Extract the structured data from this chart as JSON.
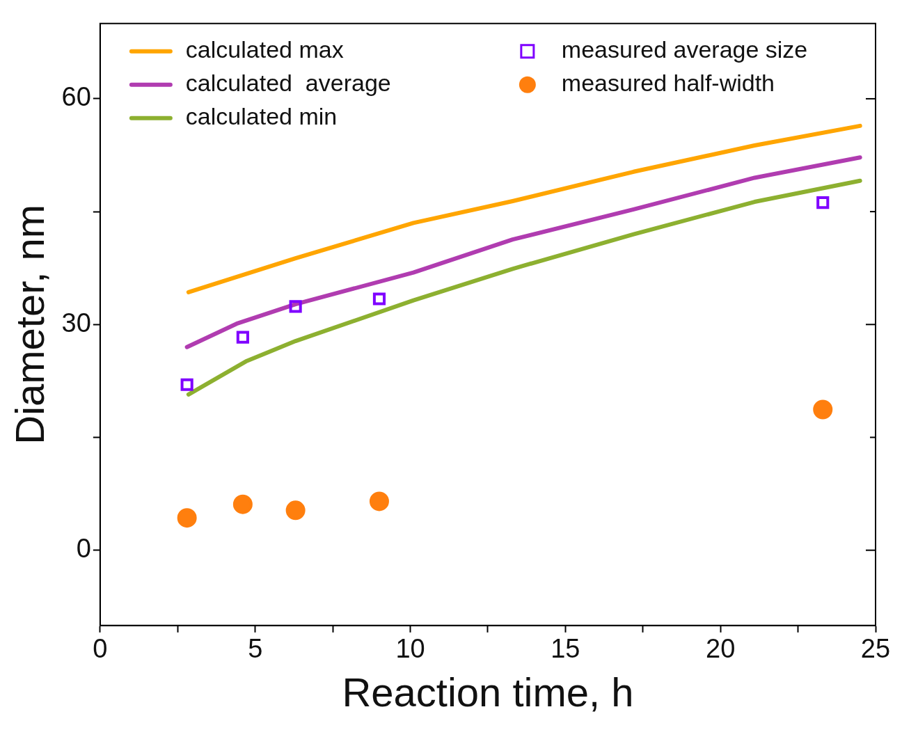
{
  "chart_data": {
    "type": "line",
    "xlabel": "Reaction time, h",
    "ylabel": "Diameter, nm",
    "xlim": [
      0,
      25
    ],
    "ylim": [
      -10,
      70
    ],
    "xticks": [
      0,
      {
        "value": 2.5,
        "label": null
      },
      5,
      {
        "value": 7.5,
        "label": null
      },
      10,
      {
        "value": 12.5,
        "label": null
      },
      15,
      {
        "value": 17.5,
        "label": null
      },
      20,
      {
        "value": 22.5,
        "label": null
      },
      25
    ],
    "yticks": [
      0,
      {
        "value": 15,
        "label": null
      },
      30,
      {
        "value": 45,
        "label": null
      },
      60
    ],
    "grid": false,
    "legend": "top",
    "series": [
      {
        "name": "calculated max",
        "type": "line",
        "marker": "none",
        "color": "#ffa500",
        "x": [
          2.85,
          6.3,
          10.1,
          13.3,
          17.2,
          21.1,
          24.5
        ],
        "values": [
          34.3,
          38.8,
          43.5,
          46.4,
          50.3,
          53.8,
          56.4
        ]
      },
      {
        "name": "calculated  average",
        "type": "line",
        "marker": "none",
        "color": "#b03cb0",
        "x": [
          2.8,
          4.4,
          6.3,
          10.1,
          13.3,
          17.2,
          21.1,
          24.5
        ],
        "values": [
          27.0,
          30.1,
          32.7,
          36.9,
          41.3,
          45.3,
          49.5,
          52.2
        ]
      },
      {
        "name": "calculated min",
        "type": "line",
        "marker": "none",
        "color": "#8db030",
        "x": [
          2.85,
          4.7,
          6.3,
          10.1,
          13.3,
          17.2,
          21.1,
          24.5
        ],
        "values": [
          20.7,
          25.1,
          27.8,
          33.2,
          37.4,
          42.0,
          46.3,
          49.1
        ]
      },
      {
        "name": "measured average size",
        "type": "scatter",
        "marker": "square",
        "color": "#7f00ff",
        "x": [
          2.8,
          4.6,
          6.3,
          9.0,
          23.3
        ],
        "values": [
          22.0,
          28.3,
          32.4,
          33.4,
          46.2
        ]
      },
      {
        "name": "measured half-width",
        "type": "scatter",
        "marker": "circle",
        "color": "#ff7f0e",
        "x": [
          2.8,
          4.6,
          6.3,
          9.0,
          23.3
        ],
        "values": [
          4.3,
          6.1,
          5.3,
          6.5,
          18.7
        ]
      }
    ]
  }
}
